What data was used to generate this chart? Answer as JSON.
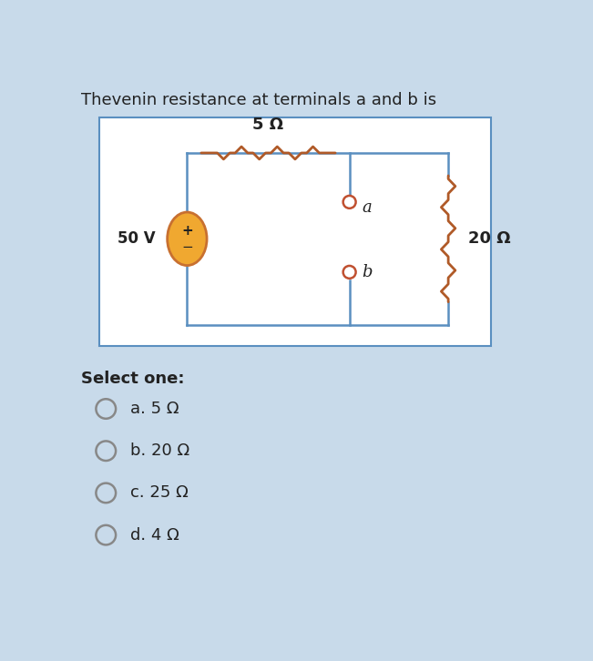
{
  "title": "Thevenin resistance at terminals a and b is",
  "bg_color": "#c8daea",
  "circuit_bg": "#ffffff",
  "circuit_border": "#5a8fc0",
  "voltage_source_label": "50 V",
  "resistor1_label": "5 Ω",
  "resistor2_label": "20 Ω",
  "terminal_a_label": "a",
  "terminal_b_label": "b",
  "select_text": "Select one:",
  "options": [
    "a. 5 Ω",
    "b. 20 Ω",
    "c. 25 Ω",
    "d. 4 Ω"
  ],
  "wire_color": "#5a8fc0",
  "resistor_color": "#b05a28",
  "voltage_fill": "#f0a830",
  "voltage_edge": "#c87030",
  "terminal_color": "#c05030",
  "text_color": "#222222",
  "title_fontsize": 13,
  "label_fontsize": 12,
  "option_fontsize": 13,
  "select_fontsize": 13
}
